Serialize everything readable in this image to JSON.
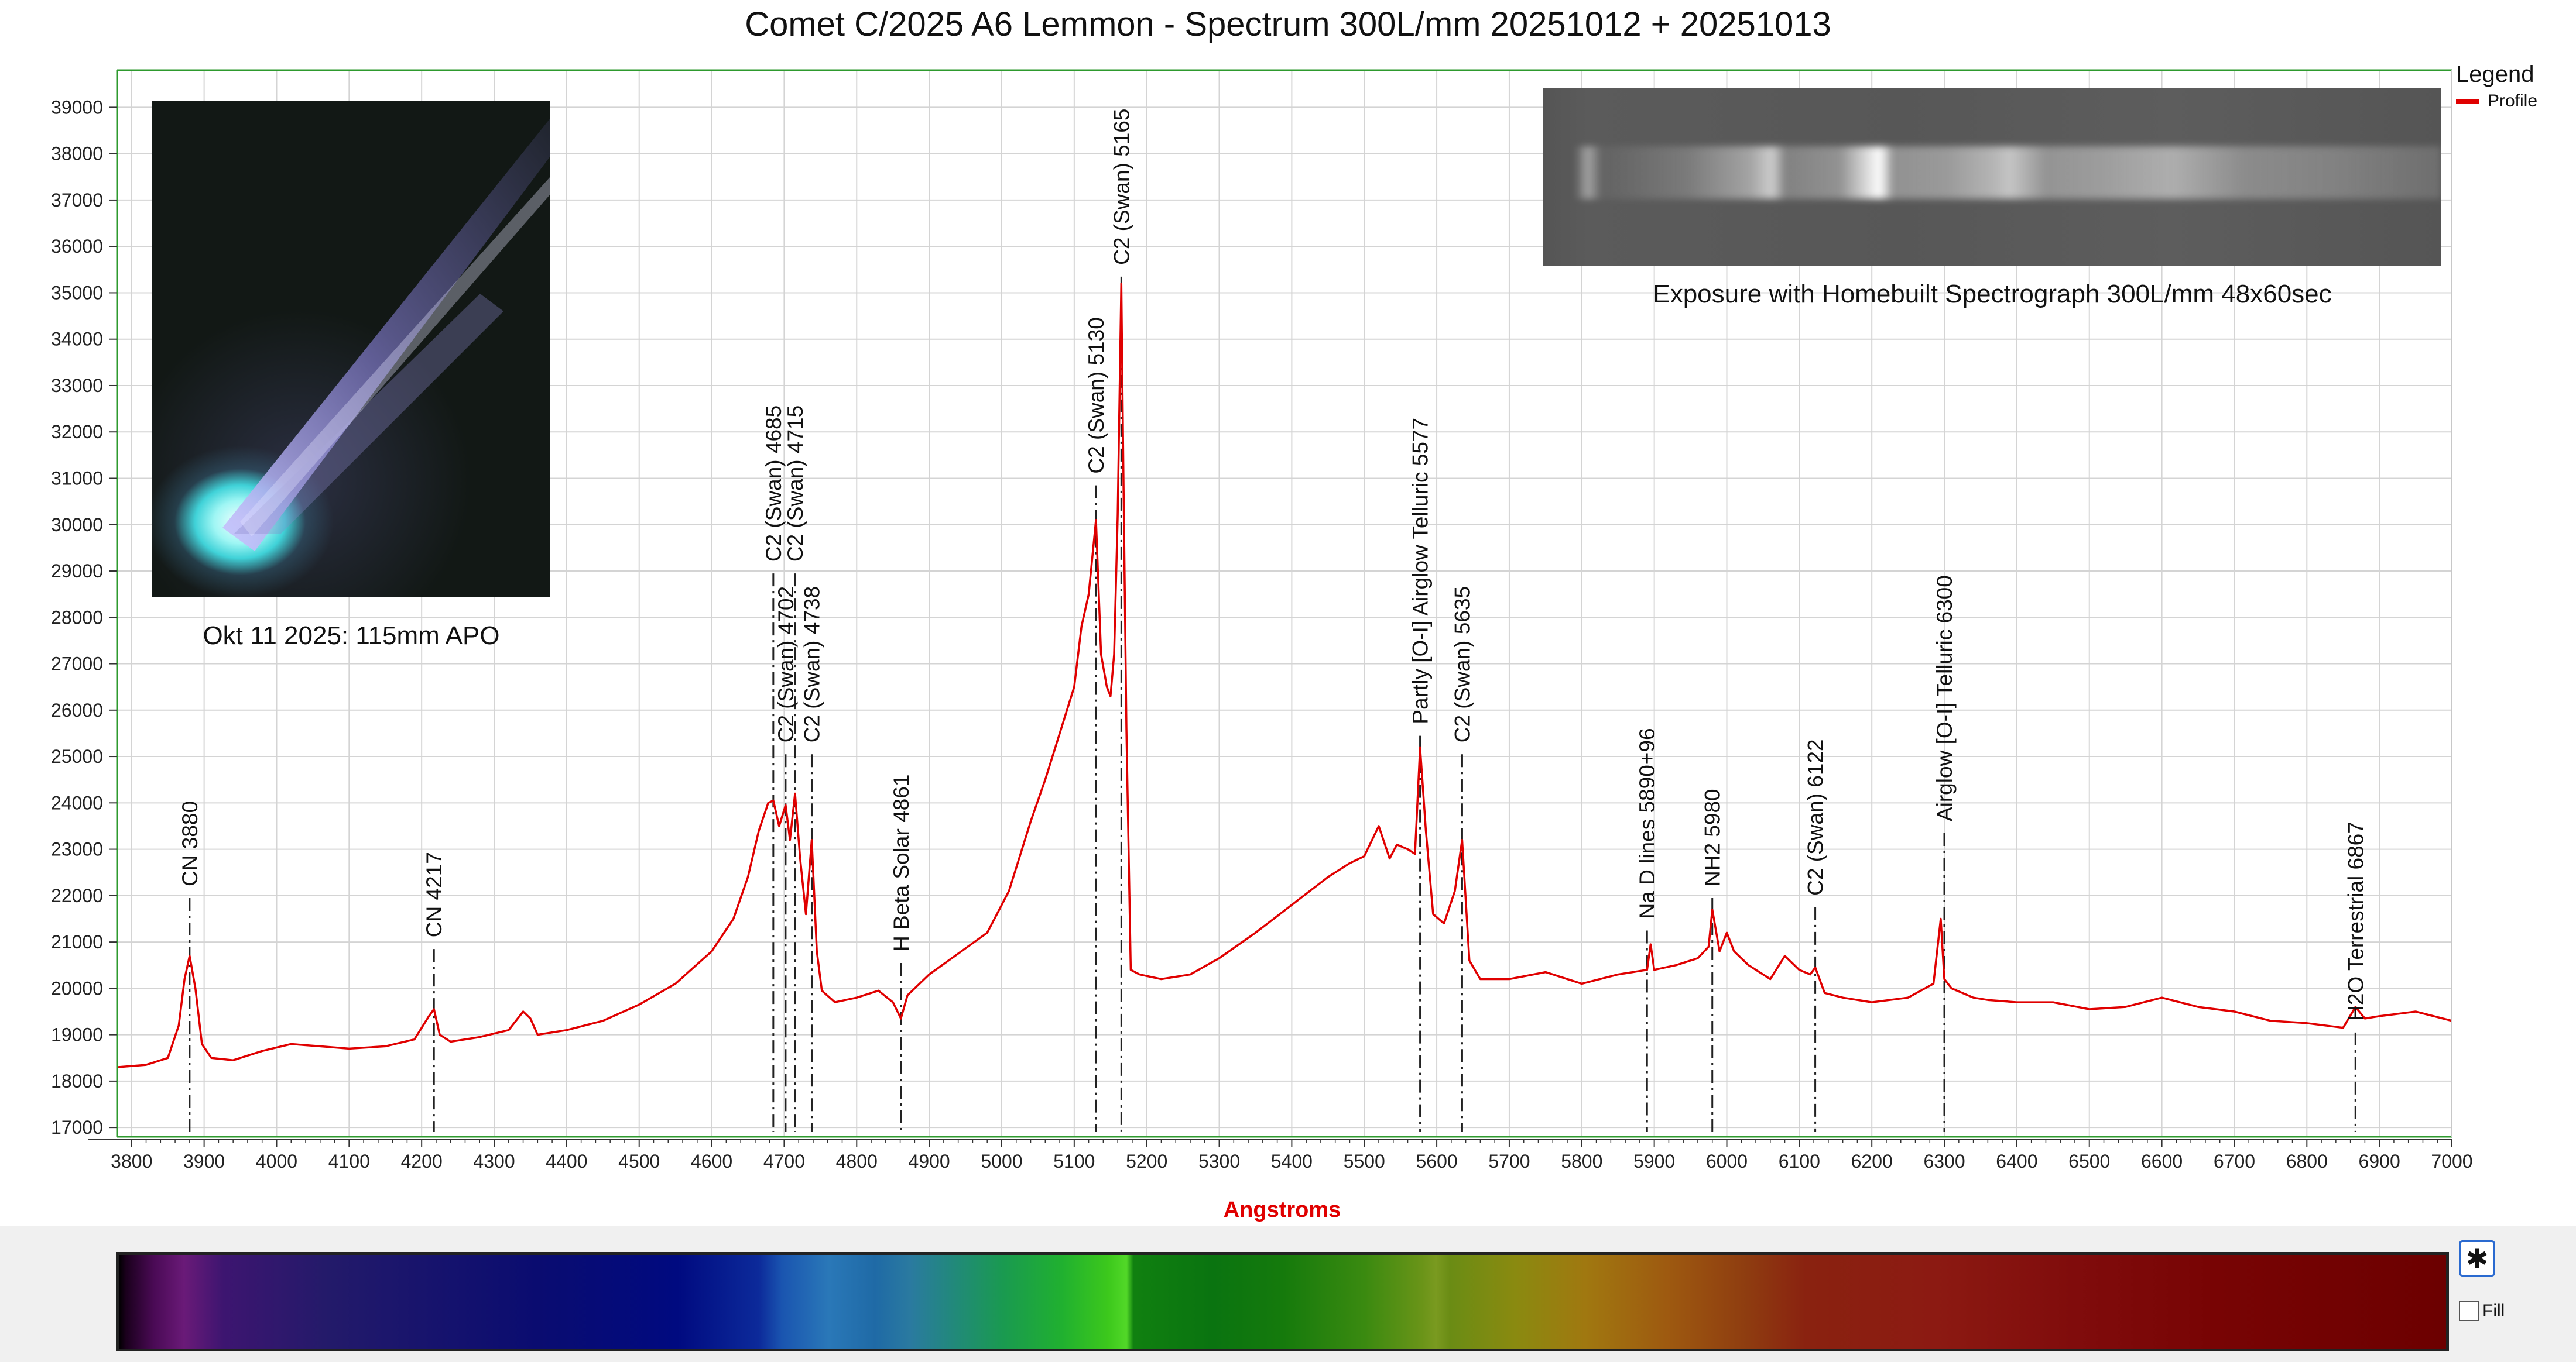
{
  "chart_data": {
    "type": "line",
    "title": "Comet C/2025 A6 Lemmon - Spectrum 300L/mm 20251012 + 20251013",
    "xlabel": "Angstroms",
    "ylabel": "",
    "xlim": [
      3780,
      7000
    ],
    "ylim": [
      16800,
      39800
    ],
    "grid": true,
    "legend": {
      "title": "Legend",
      "position": "top-right",
      "entries": [
        "Profile"
      ]
    },
    "x_ticks": [
      3800,
      3900,
      4000,
      4100,
      4200,
      4300,
      4400,
      4500,
      4600,
      4700,
      4800,
      4900,
      5000,
      5100,
      5200,
      5300,
      5400,
      5500,
      5600,
      5700,
      5800,
      5900,
      6000,
      6100,
      6200,
      6300,
      6400,
      6500,
      6600,
      6700,
      6800,
      6900,
      7000
    ],
    "y_ticks": [
      17000,
      18000,
      19000,
      20000,
      21000,
      22000,
      23000,
      24000,
      25000,
      26000,
      27000,
      28000,
      29000,
      30000,
      31000,
      32000,
      33000,
      34000,
      35000,
      36000,
      37000,
      38000,
      39000
    ],
    "series": [
      {
        "name": "Profile",
        "color": "#e00000",
        "x": [
          3780,
          3820,
          3850,
          3865,
          3873,
          3880,
          3888,
          3897,
          3910,
          3940,
          3980,
          4020,
          4060,
          4100,
          4150,
          4190,
          4210,
          4217,
          4225,
          4240,
          4280,
          4320,
          4340,
          4350,
          4360,
          4400,
          4450,
          4500,
          4550,
          4600,
          4630,
          4650,
          4665,
          4678,
          4685,
          4693,
          4702,
          4708,
          4715,
          4722,
          4730,
          4738,
          4745,
          4752,
          4770,
          4800,
          4830,
          4850,
          4861,
          4870,
          4900,
          4940,
          4980,
          5010,
          5040,
          5060,
          5080,
          5100,
          5110,
          5120,
          5130,
          5137,
          5145,
          5150,
          5155,
          5160,
          5165,
          5168,
          5172,
          5178,
          5190,
          5220,
          5260,
          5300,
          5350,
          5400,
          5450,
          5480,
          5500,
          5520,
          5535,
          5545,
          5560,
          5570,
          5577,
          5585,
          5595,
          5610,
          5625,
          5635,
          5645,
          5660,
          5700,
          5750,
          5800,
          5850,
          5890,
          5895,
          5900,
          5930,
          5960,
          5975,
          5980,
          5990,
          6000,
          6010,
          6030,
          6060,
          6080,
          6100,
          6115,
          6122,
          6135,
          6160,
          6200,
          6250,
          6285,
          6295,
          6300,
          6310,
          6340,
          6360,
          6400,
          6450,
          6500,
          6550,
          6600,
          6650,
          6700,
          6750,
          6800,
          6850,
          6867,
          6880,
          6900,
          6950,
          7000
        ],
        "values": [
          18300,
          18350,
          18500,
          19200,
          20200,
          20700,
          20000,
          18800,
          18500,
          18450,
          18650,
          18800,
          18750,
          18700,
          18750,
          18900,
          19400,
          19550,
          19000,
          18850,
          18950,
          19100,
          19500,
          19350,
          19000,
          19100,
          19300,
          19650,
          20100,
          20800,
          21500,
          22400,
          23400,
          24000,
          24050,
          23500,
          23950,
          23200,
          24200,
          22800,
          21600,
          23200,
          20800,
          19950,
          19700,
          19800,
          19950,
          19700,
          19350,
          19850,
          20300,
          20750,
          21200,
          22100,
          23600,
          24500,
          25500,
          26500,
          27800,
          28500,
          30100,
          27200,
          26500,
          26300,
          27200,
          30200,
          35200,
          30800,
          25600,
          20400,
          20300,
          20200,
          20300,
          20650,
          21200,
          21800,
          22400,
          22700,
          22850,
          23500,
          22800,
          23100,
          23000,
          22900,
          25200,
          23400,
          21600,
          21400,
          22100,
          23200,
          20600,
          20200,
          20200,
          20350,
          20100,
          20300,
          20400,
          20950,
          20400,
          20500,
          20650,
          20900,
          21700,
          20800,
          21200,
          20800,
          20500,
          20200,
          20700,
          20400,
          20300,
          20450,
          19900,
          19800,
          19700,
          19800,
          20100,
          21500,
          20200,
          20000,
          19800,
          19750,
          19700,
          19700,
          19550,
          19600,
          19800,
          19600,
          19500,
          19300,
          19250,
          19150,
          19600,
          19350,
          19400,
          19500,
          19300
        ]
      }
    ],
    "line_markers": [
      {
        "x": 3880,
        "label": "CN 3880",
        "label_y": 22200
      },
      {
        "x": 4217,
        "label": "CN 4217",
        "label_y": 21100
      },
      {
        "x": 4685,
        "label": "C2 (Swan) 4685",
        "label_y": 29200
      },
      {
        "x": 4702,
        "label": "C2 (Swan) 4702",
        "label_y": 25300
      },
      {
        "x": 4715,
        "label": "C2 (Swan) 4715",
        "label_y": 29200
      },
      {
        "x": 4738,
        "label": "C2 (Swan) 4738",
        "label_y": 25300
      },
      {
        "x": 4861,
        "label": "H Beta Solar 4861",
        "label_y": 20800
      },
      {
        "x": 5130,
        "label": "C2 (Swan) 5130",
        "label_y": 31100
      },
      {
        "x": 5165,
        "label": "C2 (Swan) 5165",
        "label_y": 35600
      },
      {
        "x": 5577,
        "label": "Partly [O-I] Airglow Telluric 5577",
        "label_y": 25700
      },
      {
        "x": 5635,
        "label": "C2 (Swan) 5635",
        "label_y": 25300
      },
      {
        "x": 5890,
        "label": "Na D lines 5890+96",
        "label_y": 21500
      },
      {
        "x": 5980,
        "label": "NH2 5980",
        "label_y": 22200
      },
      {
        "x": 6122,
        "label": "C2 (Swan) 6122",
        "label_y": 22000
      },
      {
        "x": 6300,
        "label": "Airglow [O-I] Telluric 6300",
        "label_y": 23600
      },
      {
        "x": 6867,
        "label": "H2O Terrestrial 6867",
        "label_y": 19300
      }
    ]
  },
  "insets": {
    "photo_caption": "Okt 11 2025: 115mm APO",
    "exposure_caption": "Exposure with Homebuilt Spectrograph 300L/mm 48x60sec"
  },
  "controls": {
    "settings_icon": "gear-icon",
    "fill_label": "Fill"
  }
}
